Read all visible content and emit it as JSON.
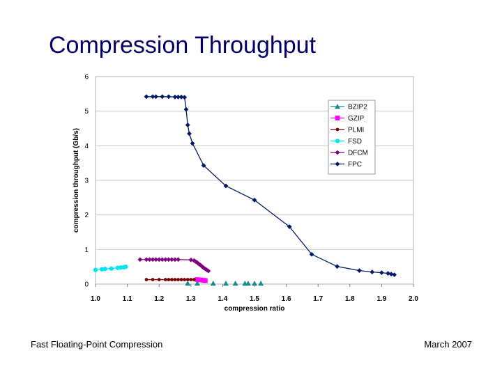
{
  "slide": {
    "title": "Compression Throughput",
    "footer_left": "Fast Floating-Point Compression",
    "footer_right": "March 2007"
  },
  "chart_data": {
    "type": "scatter",
    "xlabel": "compression ratio",
    "ylabel": "compression throughput (Gb/s)",
    "xlim": [
      1.0,
      2.0
    ],
    "ylim": [
      0,
      6
    ],
    "xticks": [
      "1.0",
      "1.1",
      "1.2",
      "1.3",
      "1.4",
      "1.5",
      "1.6",
      "1.7",
      "1.8",
      "1.9",
      "2.0"
    ],
    "yticks": [
      "0",
      "1",
      "2",
      "3",
      "4",
      "5",
      "6"
    ],
    "grid": "horizontal",
    "legend_position": "top-right",
    "series": [
      {
        "name": "BZIP2",
        "color": "#1a8a8a",
        "marker": "triangle",
        "line": false,
        "points": [
          [
            1.29,
            0.02
          ],
          [
            1.32,
            0.02
          ],
          [
            1.37,
            0.02
          ],
          [
            1.41,
            0.02
          ],
          [
            1.44,
            0.02
          ],
          [
            1.47,
            0.02
          ],
          [
            1.48,
            0.02
          ],
          [
            1.5,
            0.02
          ],
          [
            1.52,
            0.02
          ]
        ]
      },
      {
        "name": "GZIP",
        "color": "#ff00ff",
        "marker": "square",
        "line": true,
        "points": [
          [
            1.32,
            0.13
          ],
          [
            1.33,
            0.12
          ],
          [
            1.34,
            0.11
          ],
          [
            1.345,
            0.1
          ]
        ]
      },
      {
        "name": "PLMI",
        "color": "#7a0000",
        "marker": "circle",
        "line": true,
        "points": [
          [
            1.16,
            0.13
          ],
          [
            1.18,
            0.13
          ],
          [
            1.2,
            0.13
          ],
          [
            1.22,
            0.13
          ],
          [
            1.23,
            0.13
          ],
          [
            1.24,
            0.13
          ],
          [
            1.25,
            0.13
          ],
          [
            1.26,
            0.13
          ],
          [
            1.27,
            0.13
          ],
          [
            1.28,
            0.13
          ],
          [
            1.29,
            0.13
          ],
          [
            1.3,
            0.13
          ],
          [
            1.31,
            0.13
          ]
        ]
      },
      {
        "name": "FSD",
        "color": "#00e5f5",
        "marker": "circle",
        "line": true,
        "points": [
          [
            1.0,
            0.41
          ],
          [
            1.02,
            0.43
          ],
          [
            1.03,
            0.44
          ],
          [
            1.05,
            0.45
          ],
          [
            1.07,
            0.47
          ],
          [
            1.08,
            0.48
          ],
          [
            1.09,
            0.49
          ],
          [
            1.095,
            0.5
          ]
        ]
      },
      {
        "name": "DFCM",
        "color": "#800080",
        "marker": "diamond",
        "line": true,
        "points": [
          [
            1.14,
            0.71
          ],
          [
            1.16,
            0.71
          ],
          [
            1.17,
            0.71
          ],
          [
            1.18,
            0.71
          ],
          [
            1.19,
            0.71
          ],
          [
            1.2,
            0.71
          ],
          [
            1.21,
            0.71
          ],
          [
            1.22,
            0.71
          ],
          [
            1.23,
            0.71
          ],
          [
            1.24,
            0.71
          ],
          [
            1.25,
            0.71
          ],
          [
            1.26,
            0.71
          ],
          [
            1.3,
            0.7
          ],
          [
            1.31,
            0.68
          ],
          [
            1.315,
            0.65
          ],
          [
            1.32,
            0.62
          ],
          [
            1.325,
            0.58
          ],
          [
            1.33,
            0.55
          ],
          [
            1.335,
            0.51
          ],
          [
            1.34,
            0.47
          ],
          [
            1.345,
            0.44
          ],
          [
            1.35,
            0.41
          ],
          [
            1.355,
            0.38
          ]
        ]
      },
      {
        "name": "FPC",
        "color": "#001a66",
        "marker": "diamond",
        "line": true,
        "points": [
          [
            1.16,
            5.42
          ],
          [
            1.18,
            5.42
          ],
          [
            1.19,
            5.42
          ],
          [
            1.21,
            5.42
          ],
          [
            1.23,
            5.42
          ],
          [
            1.25,
            5.41
          ],
          [
            1.26,
            5.41
          ],
          [
            1.27,
            5.41
          ],
          [
            1.28,
            5.4
          ],
          [
            1.285,
            5.05
          ],
          [
            1.29,
            4.6
          ],
          [
            1.295,
            4.35
          ],
          [
            1.305,
            4.07
          ],
          [
            1.34,
            3.43
          ],
          [
            1.41,
            2.84
          ],
          [
            1.5,
            2.43
          ],
          [
            1.61,
            1.66
          ],
          [
            1.68,
            0.86
          ],
          [
            1.76,
            0.51
          ],
          [
            1.83,
            0.39
          ],
          [
            1.87,
            0.35
          ],
          [
            1.9,
            0.33
          ],
          [
            1.92,
            0.31
          ],
          [
            1.93,
            0.29
          ],
          [
            1.94,
            0.27
          ]
        ]
      }
    ]
  }
}
